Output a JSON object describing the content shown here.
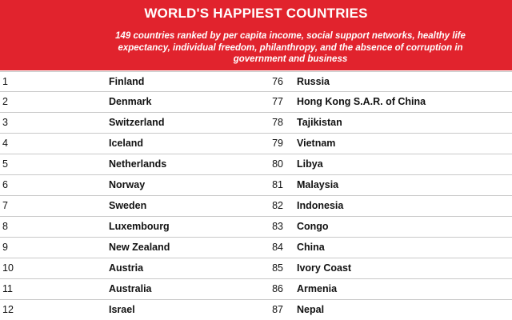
{
  "header": {
    "title": "WORLD'S HAPPIEST COUNTRIES",
    "subtitle": "149 countries ranked by per capita income, social support networks, healthy life expectancy, individual freedom, philanthropy, and the absence of corruption in government and business"
  },
  "rows": [
    {
      "rank_left": "1",
      "country_left": "Finland",
      "rank_right": "76",
      "country_right": "Russia"
    },
    {
      "rank_left": "2",
      "country_left": "Denmark",
      "rank_right": "77",
      "country_right": "Hong Kong S.A.R. of China"
    },
    {
      "rank_left": "3",
      "country_left": "Switzerland",
      "rank_right": "78",
      "country_right": "Tajikistan"
    },
    {
      "rank_left": "4",
      "country_left": "Iceland",
      "rank_right": "79",
      "country_right": "Vietnam"
    },
    {
      "rank_left": "5",
      "country_left": "Netherlands",
      "rank_right": "80",
      "country_right": "Libya"
    },
    {
      "rank_left": "6",
      "country_left": "Norway",
      "rank_right": "81",
      "country_right": "Malaysia"
    },
    {
      "rank_left": "7",
      "country_left": "Sweden",
      "rank_right": "82",
      "country_right": "Indonesia"
    },
    {
      "rank_left": "8",
      "country_left": "Luxembourg",
      "rank_right": "83",
      "country_right": "Congo"
    },
    {
      "rank_left": "9",
      "country_left": "New Zealand",
      "rank_right": "84",
      "country_right": "China"
    },
    {
      "rank_left": "10",
      "country_left": "Austria",
      "rank_right": "85",
      "country_right": "Ivory Coast"
    },
    {
      "rank_left": "11",
      "country_left": "Australia",
      "rank_right": "86",
      "country_right": "Armenia"
    },
    {
      "rank_left": "12",
      "country_left": "Israel",
      "rank_right": "87",
      "country_right": "Nepal"
    }
  ],
  "colors": {
    "header_background": "#e1232d",
    "header_text": "#ffffff",
    "row_divider": "#c9c9c9",
    "body_text": "#111111"
  }
}
